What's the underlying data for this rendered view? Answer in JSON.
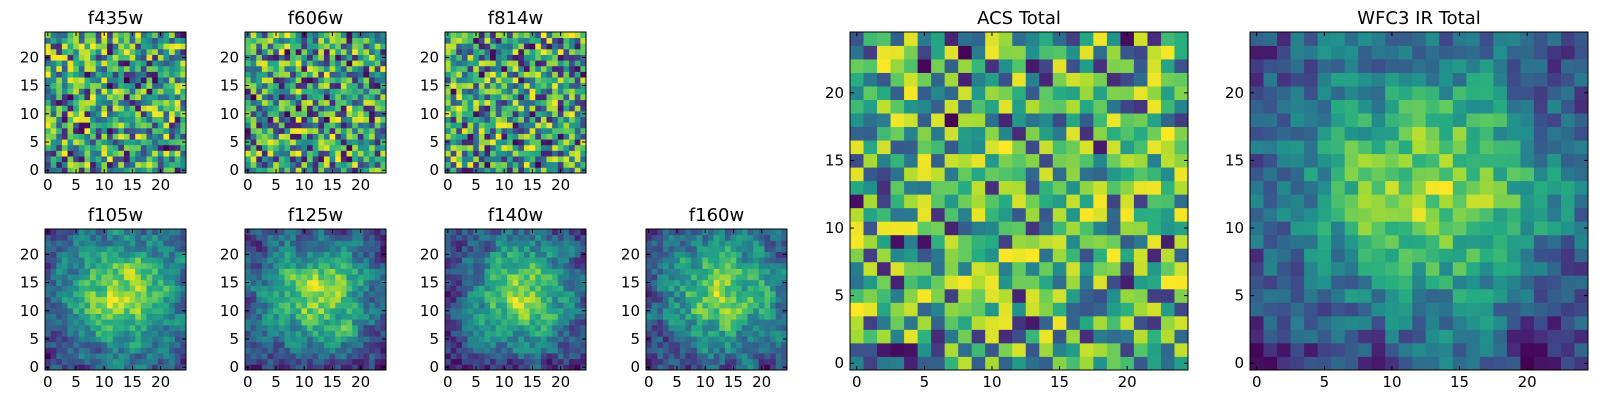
{
  "chart_data": [
    {
      "type": "heatmap",
      "id": "f435w",
      "title": "f435w",
      "size": 25,
      "xlim": [
        -0.5,
        24.5
      ],
      "ylim": [
        -0.5,
        24.5
      ],
      "xticks": [
        0,
        5,
        10,
        15,
        20
      ],
      "yticks": [
        0,
        5,
        10,
        15,
        20
      ],
      "colormap": "viridis",
      "pattern": "noise",
      "seed": 11,
      "contrast": 1.0
    },
    {
      "type": "heatmap",
      "id": "f606w",
      "title": "f606w",
      "size": 25,
      "xlim": [
        -0.5,
        24.5
      ],
      "ylim": [
        -0.5,
        24.5
      ],
      "xticks": [
        0,
        5,
        10,
        15,
        20
      ],
      "yticks": [
        0,
        5,
        10,
        15,
        20
      ],
      "colormap": "viridis",
      "pattern": "noise",
      "seed": 23,
      "contrast": 1.0
    },
    {
      "type": "heatmap",
      "id": "f814w",
      "title": "f814w",
      "size": 25,
      "xlim": [
        -0.5,
        24.5
      ],
      "ylim": [
        -0.5,
        24.5
      ],
      "xticks": [
        0,
        5,
        10,
        15,
        20
      ],
      "yticks": [
        0,
        5,
        10,
        15,
        20
      ],
      "colormap": "viridis",
      "pattern": "noise",
      "seed": 37,
      "contrast": 1.0
    },
    {
      "type": "heatmap",
      "id": "f105w",
      "title": "f105w",
      "size": 25,
      "xlim": [
        -0.5,
        24.5
      ],
      "ylim": [
        -0.5,
        24.5
      ],
      "xticks": [
        0,
        5,
        10,
        15,
        20
      ],
      "yticks": [
        0,
        5,
        10,
        15,
        20
      ],
      "colormap": "viridis",
      "pattern": "source",
      "seed": 41,
      "contrast": 0.9
    },
    {
      "type": "heatmap",
      "id": "f125w",
      "title": "f125w",
      "size": 25,
      "xlim": [
        -0.5,
        24.5
      ],
      "ylim": [
        -0.5,
        24.5
      ],
      "xticks": [
        0,
        5,
        10,
        15,
        20
      ],
      "yticks": [
        0,
        5,
        10,
        15,
        20
      ],
      "colormap": "viridis",
      "pattern": "source",
      "seed": 53,
      "contrast": 1.0
    },
    {
      "type": "heatmap",
      "id": "f140w",
      "title": "f140w",
      "size": 25,
      "xlim": [
        -0.5,
        24.5
      ],
      "ylim": [
        -0.5,
        24.5
      ],
      "xticks": [
        0,
        5,
        10,
        15,
        20
      ],
      "yticks": [
        0,
        5,
        10,
        15,
        20
      ],
      "colormap": "viridis",
      "pattern": "source",
      "seed": 67,
      "contrast": 0.9
    },
    {
      "type": "heatmap",
      "id": "f160w",
      "title": "f160w",
      "size": 25,
      "xlim": [
        -0.5,
        24.5
      ],
      "ylim": [
        -0.5,
        24.5
      ],
      "xticks": [
        0,
        5,
        10,
        15,
        20
      ],
      "yticks": [
        0,
        5,
        10,
        15,
        20
      ],
      "colormap": "viridis",
      "pattern": "source",
      "seed": 79,
      "contrast": 1.1
    },
    {
      "type": "heatmap",
      "id": "acs_total",
      "title": "ACS Total",
      "size": 25,
      "xlim": [
        -0.5,
        24.5
      ],
      "ylim": [
        -0.5,
        24.5
      ],
      "xticks": [
        0,
        5,
        10,
        15,
        20
      ],
      "yticks": [
        0,
        5,
        10,
        15,
        20
      ],
      "colormap": "viridis",
      "pattern": "noise-bright",
      "seed": 97,
      "contrast": 1.0
    },
    {
      "type": "heatmap",
      "id": "wfc3_ir_total",
      "title": "WFC3 IR Total",
      "size": 25,
      "xlim": [
        -0.5,
        24.5
      ],
      "ylim": [
        -0.5,
        24.5
      ],
      "xticks": [
        0,
        5,
        10,
        15,
        20
      ],
      "yticks": [
        0,
        5,
        10,
        15,
        20
      ],
      "colormap": "viridis",
      "pattern": "smooth-source",
      "seed": 131,
      "contrast": 1.0
    }
  ]
}
